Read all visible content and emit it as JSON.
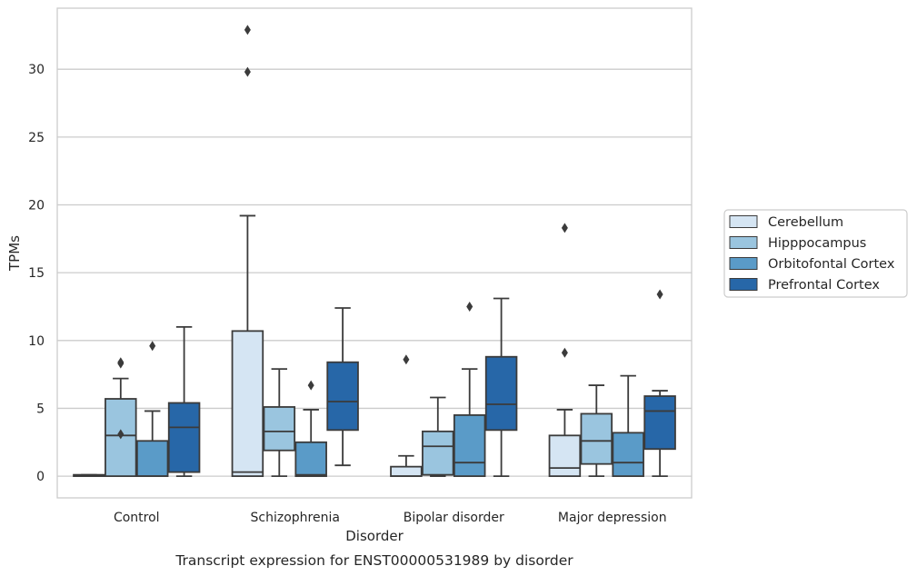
{
  "chart_data": {
    "type": "box",
    "xlabel": "Disorder",
    "ylabel": "TPMs",
    "caption": "Transcript expression for ENST00000531989 by disorder",
    "ylim": [
      -1.6,
      34.5
    ],
    "yticks": [
      0,
      5,
      10,
      15,
      20,
      25,
      30
    ],
    "grid": "horizontal",
    "legend_position": "right",
    "categories": [
      "Control",
      "Schizophrenia",
      "Bipolar disorder",
      "Major depression"
    ],
    "series": [
      {
        "name": "Cerebellum",
        "color": "#d5e5f3",
        "boxes": [
          {
            "whislo": 0,
            "q1": 0,
            "med": 0,
            "q3": 0.1,
            "whishi": 0.1,
            "fliers": []
          },
          {
            "whislo": 0,
            "q1": 0,
            "med": 0.3,
            "q3": 10.7,
            "whishi": 19.2,
            "fliers": [
              29.8,
              32.9
            ]
          },
          {
            "whislo": 0,
            "q1": 0,
            "med": 0,
            "q3": 0.7,
            "whishi": 1.5,
            "fliers": [
              8.6
            ]
          },
          {
            "whislo": 0,
            "q1": 0,
            "med": 0.6,
            "q3": 3.0,
            "whishi": 4.9,
            "fliers": [
              9.1,
              18.3
            ]
          }
        ]
      },
      {
        "name": "Hipppocampus",
        "color": "#9ac5df",
        "boxes": [
          {
            "whislo": 0,
            "q1": 0,
            "med": 3.0,
            "q3": 5.7,
            "whishi": 7.2,
            "fliers": [
              3.1,
              8.3,
              8.4
            ]
          },
          {
            "whislo": 0,
            "q1": 1.9,
            "med": 3.3,
            "q3": 5.1,
            "whishi": 7.9,
            "fliers": []
          },
          {
            "whislo": 0,
            "q1": 0.1,
            "med": 2.2,
            "q3": 3.3,
            "whishi": 5.8,
            "fliers": []
          },
          {
            "whislo": 0,
            "q1": 0.9,
            "med": 2.6,
            "q3": 4.6,
            "whishi": 6.7,
            "fliers": []
          }
        ]
      },
      {
        "name": "Orbitofontal Cortex",
        "color": "#5a9bc8",
        "boxes": [
          {
            "whislo": 0,
            "q1": 0,
            "med": 0,
            "q3": 2.6,
            "whishi": 4.8,
            "fliers": [
              9.6
            ]
          },
          {
            "whislo": 0,
            "q1": 0,
            "med": 0.1,
            "q3": 2.5,
            "whishi": 4.9,
            "fliers": [
              6.7
            ]
          },
          {
            "whislo": 0,
            "q1": 0,
            "med": 1.0,
            "q3": 4.5,
            "whishi": 7.9,
            "fliers": [
              12.5
            ]
          },
          {
            "whislo": 0,
            "q1": 0,
            "med": 1.0,
            "q3": 3.2,
            "whishi": 7.4,
            "fliers": []
          }
        ]
      },
      {
        "name": "Prefrontal Cortex",
        "color": "#2767a8",
        "boxes": [
          {
            "whislo": 0,
            "q1": 0.3,
            "med": 3.6,
            "q3": 5.4,
            "whishi": 11.0,
            "fliers": []
          },
          {
            "whislo": 0.8,
            "q1": 3.4,
            "med": 5.5,
            "q3": 8.4,
            "whishi": 12.4,
            "fliers": []
          },
          {
            "whislo": 0,
            "q1": 3.4,
            "med": 5.3,
            "q3": 8.8,
            "whishi": 13.1,
            "fliers": []
          },
          {
            "whislo": 0,
            "q1": 2.0,
            "med": 4.8,
            "q3": 5.9,
            "whishi": 6.3,
            "fliers": [
              13.4
            ]
          }
        ]
      }
    ]
  }
}
